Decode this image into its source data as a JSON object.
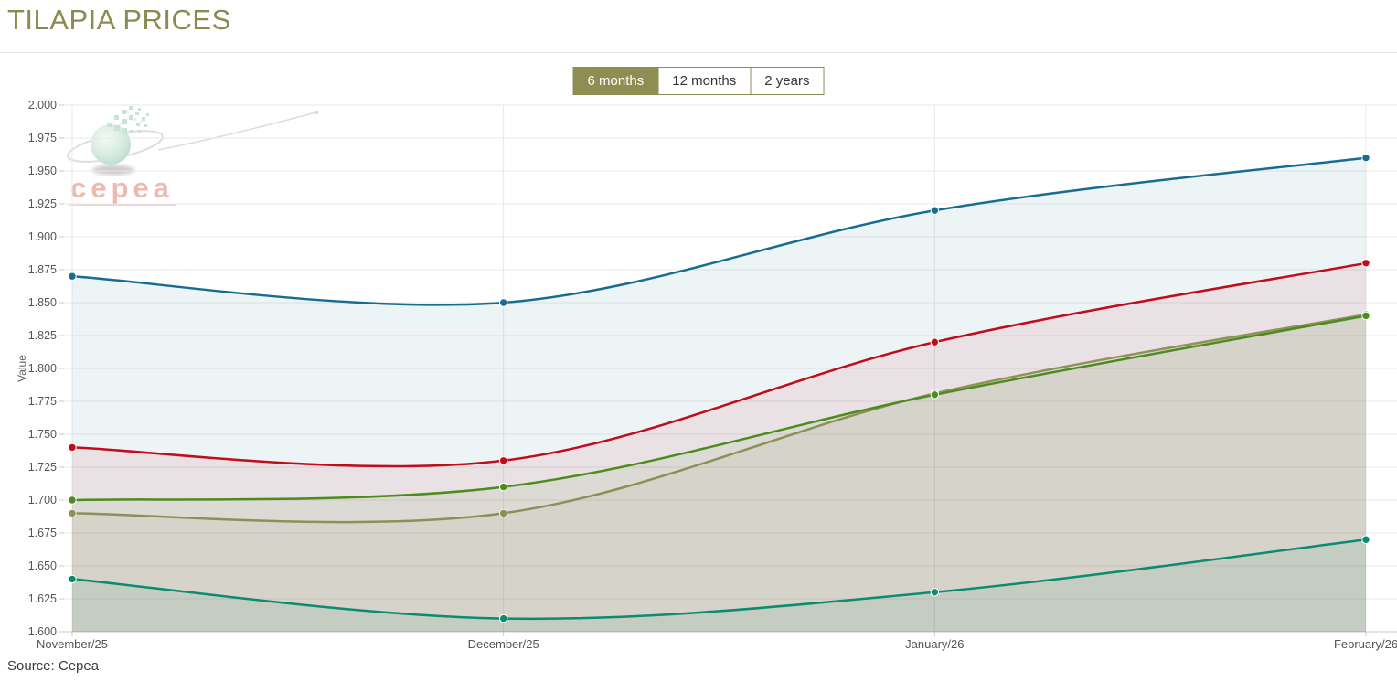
{
  "header": {
    "title": "TILAPIA PRICES"
  },
  "range_selector": {
    "options": [
      {
        "label": "6 months",
        "selected": true
      },
      {
        "label": "12 months",
        "selected": false
      },
      {
        "label": "2 years",
        "selected": false
      }
    ]
  },
  "watermark": {
    "text": "cepea"
  },
  "footer": {
    "source": "Source: Cepea"
  },
  "colors": {
    "accent": "#8e8e52",
    "title": "#8a8b4f",
    "grid": "#e9e9e9",
    "axis": "#c9c9c9",
    "tick_label": "#555555"
  },
  "chart_data": {
    "type": "line",
    "categories": [
      "November/25",
      "December/25",
      "January/26",
      "February/26"
    ],
    "series": [
      {
        "name": "blue",
        "color": "#176d91",
        "values": [
          1.87,
          1.85,
          1.92,
          1.96
        ]
      },
      {
        "name": "red",
        "color": "#c00c1d",
        "values": [
          1.74,
          1.73,
          1.82,
          1.88
        ]
      },
      {
        "name": "olive",
        "color": "#90915c",
        "values": [
          1.69,
          1.69,
          1.781,
          1.841
        ]
      },
      {
        "name": "green",
        "color": "#4c8c1c",
        "values": [
          1.7,
          1.71,
          1.78,
          1.84
        ]
      },
      {
        "name": "teal",
        "color": "#0b8b70",
        "values": [
          1.64,
          1.61,
          1.63,
          1.67
        ]
      }
    ],
    "title": "",
    "xlabel": "",
    "ylabel": "Value",
    "ylim": [
      1.6,
      2.0
    ],
    "ytick_step": 0.025,
    "ytick_format": "3-decimals",
    "grid": true,
    "legend": "none",
    "area_fill": true,
    "fill_opacity": 0.08,
    "smooth": true,
    "markers": true
  }
}
